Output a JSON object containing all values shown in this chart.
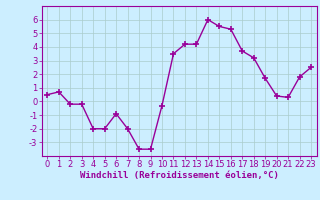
{
  "x": [
    0,
    1,
    2,
    3,
    4,
    5,
    6,
    7,
    8,
    9,
    10,
    11,
    12,
    13,
    14,
    15,
    16,
    17,
    18,
    19,
    20,
    21,
    22,
    23
  ],
  "y": [
    0.5,
    0.7,
    -0.2,
    -0.2,
    -2.0,
    -2.0,
    -0.9,
    -2.0,
    -3.5,
    -3.5,
    -0.3,
    3.5,
    4.2,
    4.2,
    6.0,
    5.5,
    5.3,
    3.7,
    3.2,
    1.7,
    0.4,
    0.3,
    1.8,
    2.5
  ],
  "line_color": "#990099",
  "marker": "+",
  "marker_size": 4,
  "linewidth": 1.0,
  "xlabel": "Windchill (Refroidissement éolien,°C)",
  "xlabel_fontsize": 6.5,
  "xlim": [
    -0.5,
    23.5
  ],
  "ylim": [
    -4,
    7
  ],
  "yticks": [
    -3,
    -2,
    -1,
    0,
    1,
    2,
    3,
    4,
    5,
    6
  ],
  "xticks": [
    0,
    1,
    2,
    3,
    4,
    5,
    6,
    7,
    8,
    9,
    10,
    11,
    12,
    13,
    14,
    15,
    16,
    17,
    18,
    19,
    20,
    21,
    22,
    23
  ],
  "background_color": "#cceeff",
  "grid_color": "#aacccc",
  "tick_fontsize": 6,
  "line_color2": "#880088"
}
